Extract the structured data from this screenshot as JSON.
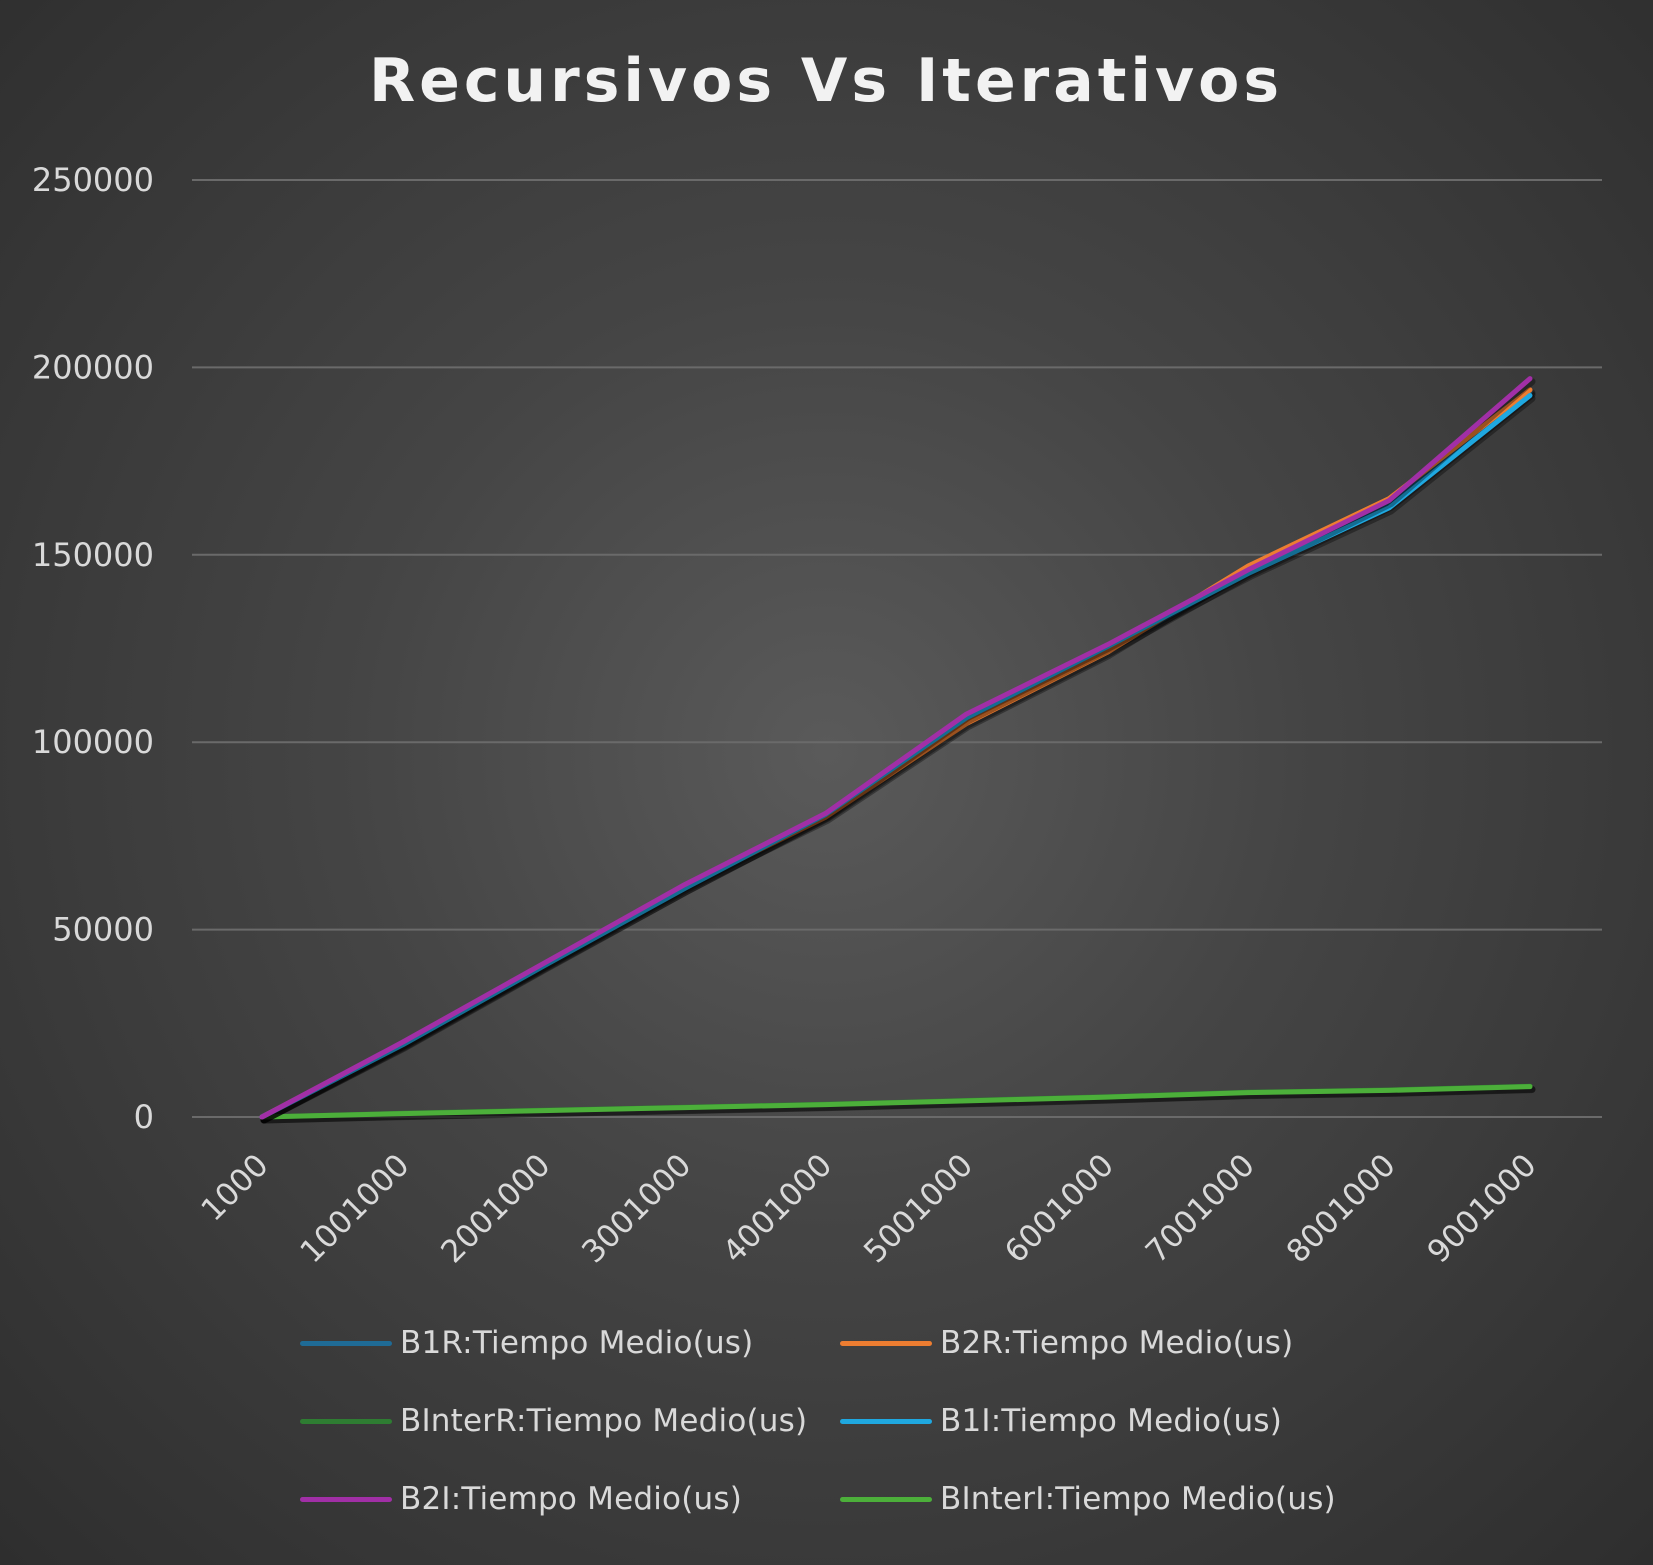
{
  "chart_data": {
    "type": "line",
    "title": "Recursivos Vs Iterativos",
    "xlabel": "",
    "ylabel": "",
    "categories": [
      "1000",
      "1001000",
      "2001000",
      "3001000",
      "4001000",
      "5001000",
      "6001000",
      "7001000",
      "8001000",
      "9001000"
    ],
    "ylim": [
      0,
      250000
    ],
    "yticks": [
      "0",
      "50000",
      "100000",
      "150000",
      "200000",
      "250000"
    ],
    "grid": true,
    "legend_position": "bottom",
    "series": [
      {
        "name": "B1R:Tiempo Medio(us)",
        "color": "#1f6b96",
        "values": [
          0,
          19500,
          40500,
          61000,
          80500,
          105500,
          124500,
          145500,
          163500,
          193500
        ]
      },
      {
        "name": "B2R:Tiempo Medio(us)",
        "color": "#ed7d31",
        "values": [
          0,
          19800,
          40800,
          61500,
          80000,
          105000,
          124000,
          147000,
          165000,
          194000
        ]
      },
      {
        "name": "BInterR:Tiempo Medio(us)",
        "color": "#2e7d32",
        "values": [
          0,
          1000,
          1800,
          2600,
          3400,
          4400,
          5400,
          6600,
          7200,
          8200
        ]
      },
      {
        "name": "B1I:Tiempo Medio(us)",
        "color": "#1fa8e0",
        "values": [
          0,
          19300,
          40300,
          61000,
          80700,
          106500,
          125500,
          145000,
          162500,
          192500
        ]
      },
      {
        "name": "B2I:Tiempo Medio(us)",
        "color": "#a12fa6",
        "values": [
          0,
          20000,
          41000,
          62000,
          81000,
          107500,
          126000,
          146000,
          164500,
          197000
        ]
      },
      {
        "name": "BInterI:Tiempo Medio(us)",
        "color": "#4caf3a",
        "values": [
          0,
          900,
          1700,
          2500,
          3300,
          4300,
          5300,
          6500,
          7100,
          8100
        ]
      }
    ]
  }
}
